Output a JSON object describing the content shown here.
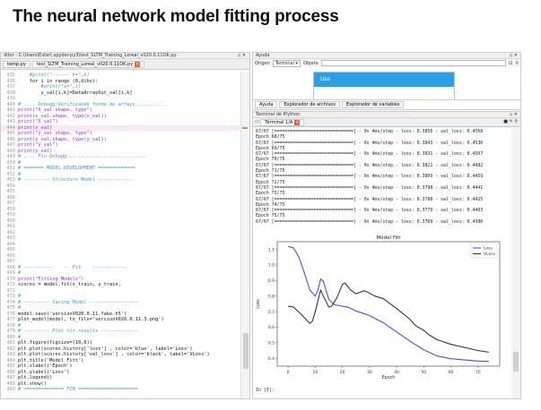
{
  "slide_title": "The neural network model fitting process",
  "editor": {
    "title": "ditor - C:\\Users\\Exter\\.spyder-py3\\test_SLTM_Training_Loreal_v020.0.11OK.py",
    "tabs": [
      "temp.py",
      "test_SLTM_Training_Loreal_v020.0.11OK.py"
    ],
    "lines": [
      {
        "n": "435",
        "t": "    #print(\"------ k=\",k)",
        "c": "comment"
      },
      {
        "n": "436",
        "t": "    for i in range (0,dihv):",
        "c": "normal"
      },
      {
        "n": "437",
        "t": "        #print(\"i=\",i)",
        "c": "comment"
      },
      {
        "n": "438",
        "t": "        y_val[i,k]=DataArrayOut_val[i,k]",
        "c": "normal"
      },
      {
        "n": "439",
        "t": "",
        "c": "normal"
      },
      {
        "n": "440",
        "t": "# .... Debugg:Verificando forma de arrays ..........",
        "c": "comment"
      },
      {
        "n": "441",
        "t": "print(\"X_val shape, type\")",
        "c": "print"
      },
      {
        "n": "442",
        "t": "print(x_val.shape, type(x_val))",
        "c": "print"
      },
      {
        "n": "443",
        "t": "print(\"X_val\")",
        "c": "print"
      },
      {
        "n": "444",
        "t": "print(x_val)",
        "c": "print",
        "hl": true
      },
      {
        "n": "445",
        "t": "print(\"y_val shape, type\")",
        "c": "print"
      },
      {
        "n": "446",
        "t": "print(y_val.shape, type(y_val))",
        "c": "print"
      },
      {
        "n": "447",
        "t": "print(\"y_val\")",
        "c": "print"
      },
      {
        "n": "448",
        "t": "print(y_val)",
        "c": "print"
      },
      {
        "n": "449",
        "t": "# .... Fin Debugg............................",
        "c": "comment"
      },
      {
        "n": "450",
        "t": "#",
        "c": "comment"
      },
      {
        "n": "451",
        "t": "# ======= MODEL DEVELOPMENT =============",
        "c": "comment"
      },
      {
        "n": "452",
        "t": "#",
        "c": "comment"
      },
      {
        "n": "453",
        "t": "# --------- Structure Model ------------",
        "c": "comment"
      },
      {
        "n": "454",
        "t": "",
        "c": "normal"
      },
      {
        "n": "455",
        "t": "",
        "c": "normal"
      },
      {
        "n": "456",
        "t": "",
        "c": "normal"
      },
      {
        "n": "457",
        "t": "",
        "c": "normal"
      },
      {
        "n": "458",
        "t": "",
        "c": "normal"
      },
      {
        "n": "459",
        "t": "",
        "c": "normal"
      },
      {
        "n": "460",
        "t": "",
        "c": "normal"
      },
      {
        "n": "461",
        "t": "",
        "c": "normal"
      },
      {
        "n": "462",
        "t": "",
        "c": "normal"
      },
      {
        "n": "463",
        "t": "",
        "c": "normal"
      },
      {
        "n": "464",
        "t": "",
        "c": "normal"
      },
      {
        "n": "465",
        "t": "",
        "c": "normal"
      },
      {
        "n": "466",
        "t": "",
        "c": "normal"
      },
      {
        "n": "467",
        "t": "",
        "c": "normal"
      },
      {
        "n": "468",
        "t": "# ----------    -- Fit    ------------",
        "c": "comment"
      },
      {
        "n": "469",
        "t": "#",
        "c": "comment"
      },
      {
        "n": "470",
        "t": "print(\"Fitting Modelo\")",
        "c": "print"
      },
      {
        "n": "471",
        "t": "scores = model.fit(x_train, y_train,",
        "c": "normal"
      },
      {
        "n": "472",
        "t": "",
        "c": "normal"
      },
      {
        "n": "473",
        "t": "#",
        "c": "comment"
      },
      {
        "n": "474",
        "t": "# --------- Saving Model -----------------",
        "c": "comment"
      },
      {
        "n": "475",
        "t": "#",
        "c": "comment"
      },
      {
        "n": "476",
        "t": "model.save('versionV020.0.11.fake.h5')",
        "c": "normal"
      },
      {
        "n": "477",
        "t": "plot_model(model, to_file='versionV020.0.11.3.png')",
        "c": "normal"
      },
      {
        "n": "478",
        "t": "#",
        "c": "comment"
      },
      {
        "n": "479",
        "t": "# --------- Plot fit results -------------",
        "c": "comment"
      },
      {
        "n": "480",
        "t": "#",
        "c": "comment"
      },
      {
        "n": "481",
        "t": "plt.figure(figsize=(10,6))",
        "c": "normal"
      },
      {
        "n": "482",
        "t": "plt.plot(scores.history['loss'] , color='blue', label='Loss')",
        "c": "normal"
      },
      {
        "n": "483",
        "t": "plt.plot(scores.history['val_loss'] , color='black', label='VLoss')",
        "c": "normal"
      },
      {
        "n": "484",
        "t": "plt.title('Model Fitt')",
        "c": "normal"
      },
      {
        "n": "485",
        "t": "plt.xlabel('Epoch')",
        "c": "normal"
      },
      {
        "n": "486",
        "t": "plt.ylabel('Loss')",
        "c": "normal"
      },
      {
        "n": "487",
        "t": "plt.legend()",
        "c": "normal"
      },
      {
        "n": "488",
        "t": "plt.show()",
        "c": "normal"
      },
      {
        "n": "489",
        "t": "# ============== FIN =====================",
        "c": "comment"
      }
    ]
  },
  "help": {
    "title": "Ayuda",
    "origin_label": "Origen",
    "origin_value": "Terminal",
    "object_label": "Objeto",
    "usage_heading": "Uso",
    "accent": "#2d9fe3",
    "tabs": [
      "Ayuda",
      "Explorador de archivos",
      "Explorador de variables"
    ]
  },
  "console": {
    "title": "Terminal de IPython",
    "tab": "Terminal 1/A",
    "lines": [
      "67/67 [==============================] - 0s 4ms/step - loss: 0.3856 - val_loss: 0.4568",
      "Epoch 68/75",
      "67/67 [==============================] - 0s 4ms/step - loss: 0.3843 - val_loss: 0.4530",
      "Epoch 69/75",
      "67/67 [==============================] - 0s 4ms/step - loss: 0.3831 - val_loss: 0.4507",
      "Epoch 70/75",
      "67/67 [==============================] - 0s 4ms/step - loss: 0.3821 - val_loss: 0.4482",
      "Epoch 71/75",
      "67/67 [==============================] - 0s 4ms/step - loss: 0.3809 - val_loss: 0.4459",
      "Epoch 72/75",
      "67/67 [==============================] - 0s 4ms/step - loss: 0.3798 - val_loss: 0.4441",
      "Epoch 73/75",
      "67/67 [==============================] - 0s 4ms/step - loss: 0.3788 - val_loss: 0.4425",
      "Epoch 74/75",
      "67/67 [==============================] - 0s 4ms/step - loss: 0.3779 - val_loss: 0.4403",
      "Epoch 75/75",
      "67/67 [==============================] - 0s 4ms/step - loss: 0.3769 - val_loss: 0.4380"
    ],
    "prompt": "In [3]:"
  },
  "chart_data": {
    "type": "line",
    "title": "Model Fitt",
    "xlabel": "Epoch",
    "ylabel": "Loss",
    "xlim": [
      -4,
      78
    ],
    "ylim": [
      0.35,
      1.15
    ],
    "xticks": [
      0,
      10,
      20,
      30,
      40,
      50,
      60,
      70
    ],
    "yticks": [
      0.4,
      0.5,
      0.6,
      0.7,
      0.8,
      0.9,
      1.0,
      1.1
    ],
    "legend": "top-right",
    "grid": false,
    "series": [
      {
        "name": "Loss",
        "color": "#4a4aff",
        "points": [
          [
            0,
            1.12
          ],
          [
            2,
            1.11
          ],
          [
            4,
            1.05
          ],
          [
            6,
            0.95
          ],
          [
            8,
            0.84
          ],
          [
            10,
            0.8
          ],
          [
            11,
            0.84
          ],
          [
            12,
            0.91
          ],
          [
            13,
            0.895
          ],
          [
            15,
            0.78
          ],
          [
            17,
            0.745
          ],
          [
            20,
            0.735
          ],
          [
            22,
            0.73
          ],
          [
            25,
            0.705
          ],
          [
            30,
            0.675
          ],
          [
            35,
            0.63
          ],
          [
            40,
            0.57
          ],
          [
            45,
            0.51
          ],
          [
            50,
            0.455
          ],
          [
            55,
            0.415
          ],
          [
            60,
            0.398
          ],
          [
            65,
            0.39
          ],
          [
            70,
            0.383
          ],
          [
            74,
            0.38
          ]
        ]
      },
      {
        "name": "VLoss",
        "color": "#333333",
        "points": [
          [
            0,
            0.735
          ],
          [
            2,
            0.73
          ],
          [
            5,
            0.68
          ],
          [
            8,
            0.625
          ],
          [
            9,
            0.64
          ],
          [
            10,
            0.7
          ],
          [
            12,
            0.84
          ],
          [
            13,
            0.8
          ],
          [
            15,
            0.73
          ],
          [
            16,
            0.735
          ],
          [
            18,
            0.79
          ],
          [
            20,
            0.875
          ],
          [
            21,
            0.885
          ],
          [
            23,
            0.84
          ],
          [
            25,
            0.815
          ],
          [
            28,
            0.835
          ],
          [
            30,
            0.82
          ],
          [
            32,
            0.8
          ],
          [
            35,
            0.785
          ],
          [
            40,
            0.72
          ],
          [
            45,
            0.65
          ],
          [
            47,
            0.61
          ],
          [
            50,
            0.58
          ],
          [
            52,
            0.55
          ],
          [
            55,
            0.52
          ],
          [
            60,
            0.49
          ],
          [
            65,
            0.47
          ],
          [
            70,
            0.45
          ],
          [
            74,
            0.44
          ]
        ]
      }
    ]
  }
}
